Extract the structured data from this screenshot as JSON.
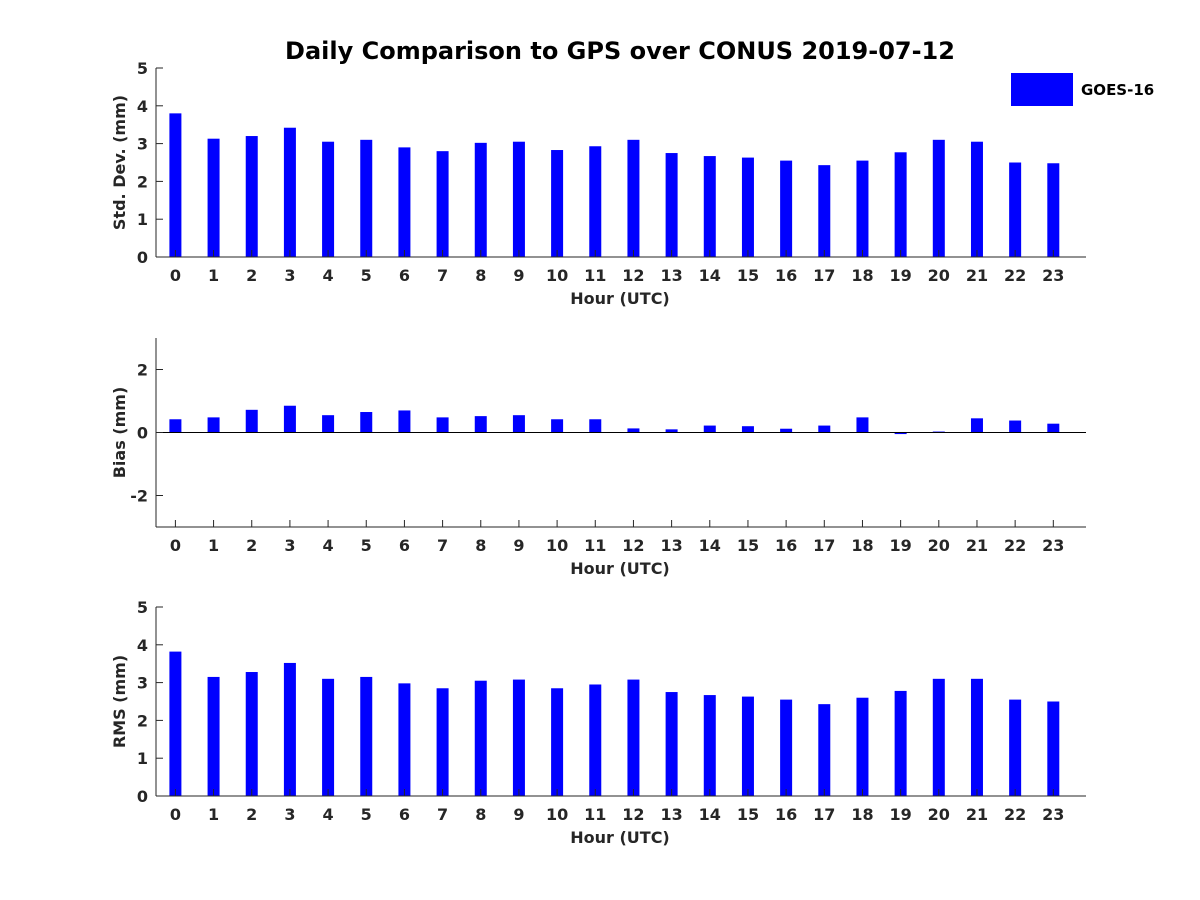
{
  "chart_data": [
    {
      "type": "bar",
      "title": "Daily Comparison to GPS over CONUS 2019-07-12",
      "xlabel": "Hour (UTC)",
      "ylabel": "Std. Dev. (mm)",
      "categories": [
        "0",
        "1",
        "2",
        "3",
        "4",
        "5",
        "6",
        "7",
        "8",
        "9",
        "10",
        "11",
        "12",
        "13",
        "14",
        "15",
        "16",
        "17",
        "18",
        "19",
        "20",
        "21",
        "22",
        "23"
      ],
      "yticks": [
        "0",
        "1",
        "2",
        "3",
        "4",
        "5"
      ],
      "ylim": [
        0,
        5
      ],
      "series": [
        {
          "name": "GOES-16",
          "color": "#0000ff",
          "values": [
            3.8,
            3.13,
            3.2,
            3.42,
            3.05,
            3.1,
            2.9,
            2.8,
            3.02,
            3.05,
            2.83,
            2.93,
            3.1,
            2.75,
            2.67,
            2.63,
            2.55,
            2.43,
            2.55,
            2.77,
            3.1,
            3.05,
            2.5,
            2.48
          ]
        }
      ],
      "legend": "top-right",
      "grid": false
    },
    {
      "type": "bar",
      "title": "",
      "xlabel": "Hour (UTC)",
      "ylabel": "Bias (mm)",
      "categories": [
        "0",
        "1",
        "2",
        "3",
        "4",
        "5",
        "6",
        "7",
        "8",
        "9",
        "10",
        "11",
        "12",
        "13",
        "14",
        "15",
        "16",
        "17",
        "18",
        "19",
        "20",
        "21",
        "22",
        "23"
      ],
      "yticks": [
        "-2",
        "0",
        "2"
      ],
      "ylim": [
        -3,
        3
      ],
      "series": [
        {
          "name": "GOES-16",
          "color": "#0000ff",
          "values": [
            0.42,
            0.48,
            0.72,
            0.85,
            0.55,
            0.65,
            0.7,
            0.48,
            0.52,
            0.55,
            0.42,
            0.42,
            0.13,
            0.1,
            0.22,
            0.2,
            0.12,
            0.22,
            0.48,
            -0.05,
            0.03,
            0.45,
            0.38,
            0.28
          ]
        }
      ],
      "grid": false
    },
    {
      "type": "bar",
      "title": "",
      "xlabel": "Hour (UTC)",
      "ylabel": "RMS (mm)",
      "categories": [
        "0",
        "1",
        "2",
        "3",
        "4",
        "5",
        "6",
        "7",
        "8",
        "9",
        "10",
        "11",
        "12",
        "13",
        "14",
        "15",
        "16",
        "17",
        "18",
        "19",
        "20",
        "21",
        "22",
        "23"
      ],
      "yticks": [
        "0",
        "1",
        "2",
        "3",
        "4",
        "5"
      ],
      "ylim": [
        0,
        5
      ],
      "series": [
        {
          "name": "GOES-16",
          "color": "#0000ff",
          "values": [
            3.82,
            3.15,
            3.28,
            3.52,
            3.1,
            3.15,
            2.98,
            2.85,
            3.05,
            3.08,
            2.85,
            2.95,
            3.08,
            2.75,
            2.67,
            2.63,
            2.55,
            2.43,
            2.6,
            2.78,
            3.1,
            3.1,
            2.55,
            2.5
          ]
        }
      ],
      "grid": false
    }
  ]
}
